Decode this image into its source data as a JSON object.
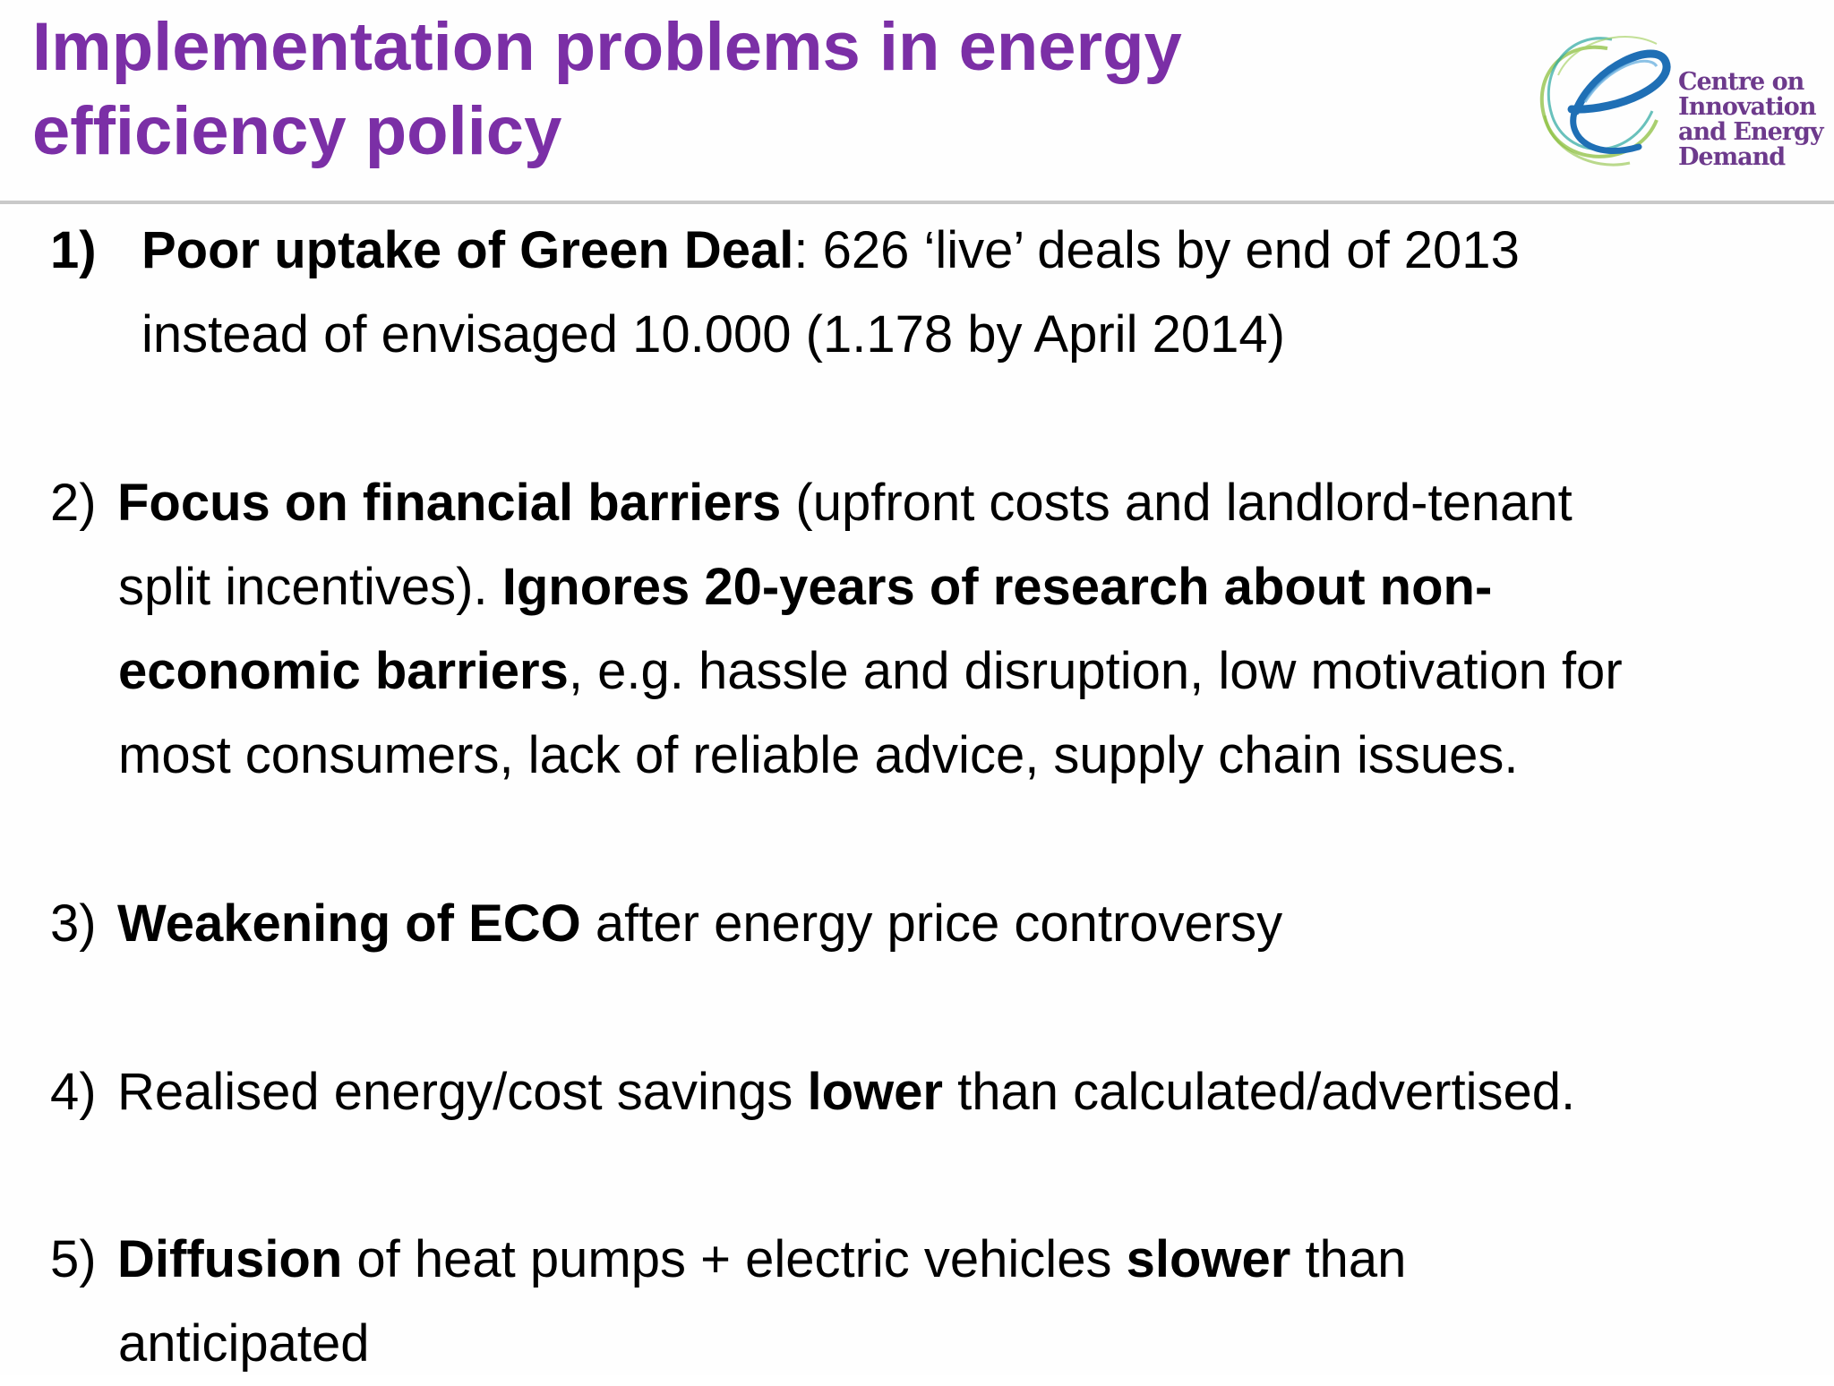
{
  "slide": {
    "title_line1": "Implementation problems in energy",
    "title_line2": "efficiency policy",
    "logo": {
      "icon": "swirl-e-logo-icon",
      "lines": [
        "Centre on",
        "Innovation",
        "and Energy",
        "Demand"
      ]
    },
    "colors": {
      "title": "#7b2fa6",
      "rule": "#c9c9c9",
      "logo_text": "#6d3a8c",
      "logo_blue": "#1f6fb5",
      "logo_green": "#8cbf3f",
      "logo_teal": "#2aa6a0"
    },
    "points": [
      {
        "number": "1)",
        "line1": {
          "bold": "Poor uptake of Green Deal",
          "rest": ": 626 ‘live’ deals by end of 2013"
        },
        "line2": "instead of envisaged 10.000  (1.178 by April 2014)"
      },
      {
        "number": "2)",
        "line1": {
          "bold": "Focus on financial barriers",
          "rest": " (upfront costs and landlord-tenant"
        },
        "line2": {
          "pre": "split incentives). ",
          "bold": "Ignores 20-years of research about non-"
        },
        "line3": {
          "bold": "economic barriers",
          "rest": ", e.g. hassle and disruption, low motivation for"
        },
        "line4": "most consumers, lack of reliable advice, supply chain issues."
      },
      {
        "number": "3)",
        "line1": {
          "bold": "Weakening of ECO",
          "rest": " after energy price controversy"
        }
      },
      {
        "number": "4)",
        "line1": {
          "pre": "Realised energy/cost savings ",
          "bold": "lower",
          "rest": " than calculated/advertised."
        }
      },
      {
        "number": "5)",
        "line1": {
          "bold": "Diffusion",
          "mid": " of heat pumps + electric vehicles ",
          "bold2": "slower",
          "rest": " than"
        },
        "line2": "anticipated"
      }
    ]
  }
}
